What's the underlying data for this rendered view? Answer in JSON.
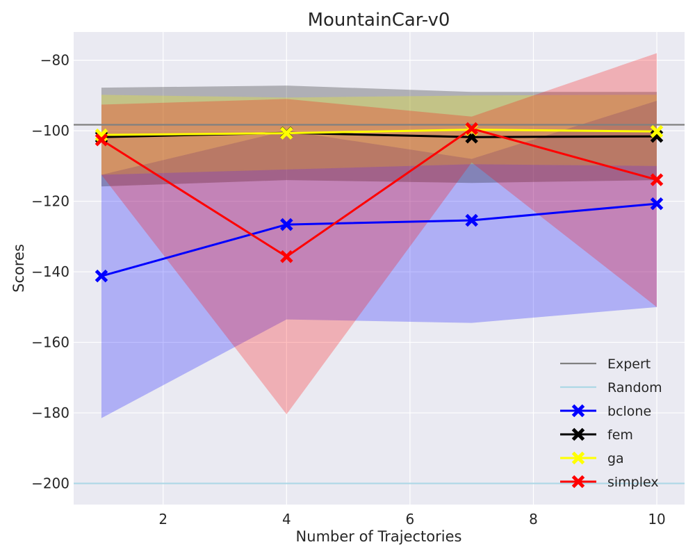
{
  "chart_data": {
    "type": "line",
    "title": "MountainCar-v0",
    "xlabel": "Number of Trajectories",
    "ylabel": "Scores",
    "xlim": [
      0.55,
      10.45
    ],
    "ylim": [
      -206,
      -72
    ],
    "xticks": [
      2,
      4,
      6,
      8,
      10
    ],
    "yticks": [
      -80,
      -100,
      -120,
      -140,
      -160,
      -180,
      -200
    ],
    "grid": true,
    "legend_position": "lower-right",
    "x": [
      1,
      4,
      7,
      10
    ],
    "reference_lines": [
      {
        "name": "Expert",
        "y": -98.3,
        "color": "#808080"
      },
      {
        "name": "Random",
        "y": -200,
        "color": "#add8e6"
      }
    ],
    "series": [
      {
        "name": "bclone",
        "color": "#0000ff",
        "band_color": "#0000ff",
        "band_opacity": 0.25,
        "values": [
          -141.2,
          -126.6,
          -125.4,
          -120.7
        ],
        "lower": [
          -181.5,
          -153.5,
          -154.5,
          -150.0
        ],
        "upper": [
          -112.5,
          -100.0,
          -108.0,
          -91.5
        ]
      },
      {
        "name": "fem",
        "color": "#000000",
        "band_color": "#000000",
        "band_opacity": 0.25,
        "values": [
          -101.8,
          -100.6,
          -101.8,
          -101.6
        ],
        "lower": [
          -115.8,
          -114.0,
          -114.8,
          -114.0
        ],
        "upper": [
          -87.8,
          -87.2,
          -89.0,
          -89.0
        ]
      },
      {
        "name": "ga",
        "color": "#ffff00",
        "band_color": "#ffff00",
        "band_opacity": 0.25,
        "values": [
          -101.2,
          -100.7,
          -99.7,
          -100.2
        ],
        "lower": [
          -112.5,
          -111.0,
          -109.5,
          -110.0
        ],
        "upper": [
          -89.8,
          -90.6,
          -90.0,
          -89.8
        ]
      },
      {
        "name": "simplex",
        "color": "#ff0000",
        "band_color": "#ff0000",
        "band_opacity": 0.25,
        "values": [
          -102.6,
          -135.7,
          -99.4,
          -113.9
        ],
        "lower": [
          -112.5,
          -180.4,
          -109.0,
          -150.0
        ],
        "upper": [
          -92.6,
          -91.0,
          -96.0,
          -78.0
        ]
      }
    ]
  }
}
